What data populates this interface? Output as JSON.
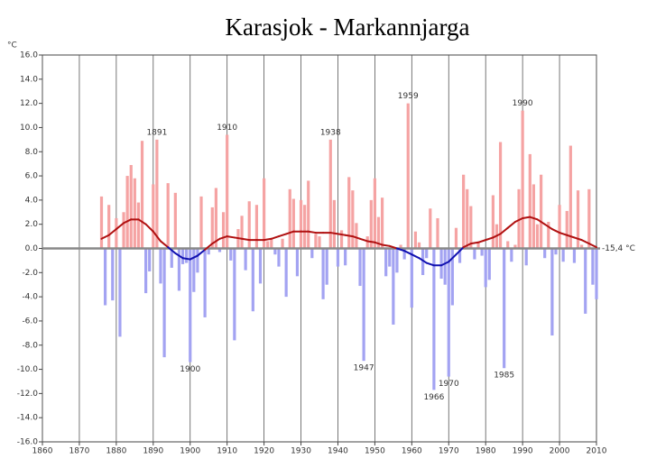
{
  "chart_data": {
    "type": "bar",
    "title": "Karasjok - Markannjarga",
    "y_unit": "°C",
    "reference_label": "-15,4 °C",
    "x": [
      1876,
      1877,
      1878,
      1879,
      1880,
      1881,
      1882,
      1883,
      1884,
      1885,
      1886,
      1887,
      1888,
      1889,
      1890,
      1891,
      1892,
      1893,
      1894,
      1895,
      1896,
      1897,
      1898,
      1899,
      1900,
      1901,
      1902,
      1903,
      1904,
      1905,
      1906,
      1907,
      1908,
      1909,
      1910,
      1911,
      1912,
      1913,
      1914,
      1915,
      1916,
      1917,
      1918,
      1919,
      1920,
      1921,
      1922,
      1923,
      1924,
      1925,
      1926,
      1927,
      1928,
      1929,
      1930,
      1931,
      1932,
      1933,
      1934,
      1935,
      1936,
      1937,
      1938,
      1939,
      1940,
      1941,
      1942,
      1943,
      1944,
      1945,
      1946,
      1947,
      1948,
      1949,
      1950,
      1951,
      1952,
      1953,
      1954,
      1955,
      1956,
      1957,
      1958,
      1959,
      1960,
      1961,
      1962,
      1963,
      1964,
      1965,
      1966,
      1967,
      1968,
      1969,
      1970,
      1971,
      1972,
      1973,
      1974,
      1975,
      1976,
      1977,
      1978,
      1979,
      1980,
      1981,
      1982,
      1983,
      1984,
      1985,
      1986,
      1987,
      1988,
      1989,
      1990,
      1991,
      1992,
      1993,
      1994,
      1995,
      1996,
      1997,
      1998,
      1999,
      2000,
      2001,
      2002,
      2003,
      2004,
      2005,
      2006,
      2007,
      2008,
      2009,
      2010
    ],
    "values": [
      4.3,
      -4.7,
      3.6,
      -4.3,
      2.5,
      -7.3,
      3.0,
      6.0,
      6.9,
      5.8,
      3.8,
      8.9,
      -3.7,
      -1.9,
      5.3,
      9.0,
      -2.9,
      -9.0,
      5.4,
      -1.6,
      4.6,
      -3.5,
      -1.3,
      -1.2,
      -9.4,
      -3.6,
      -2.0,
      4.3,
      -5.7,
      -0.5,
      3.4,
      5.0,
      -0.3,
      3.0,
      9.4,
      -1.0,
      -7.6,
      1.6,
      2.7,
      -1.8,
      3.9,
      -5.2,
      3.6,
      -2.9,
      5.8,
      0.6,
      0.8,
      -0.5,
      -1.5,
      0.8,
      -4.0,
      4.9,
      4.1,
      -2.3,
      4.0,
      3.6,
      5.6,
      -0.8,
      1.2,
      1.0,
      -4.2,
      -3.0,
      9.0,
      4.0,
      -1.5,
      1.5,
      -1.4,
      5.9,
      4.8,
      2.1,
      -3.1,
      -9.3,
      1.0,
      4.0,
      5.8,
      2.6,
      4.2,
      -2.3,
      -1.5,
      -6.3,
      -2.0,
      0.3,
      -0.9,
      12.0,
      -4.9,
      1.4,
      0.5,
      -2.2,
      -0.8,
      3.3,
      -11.7,
      2.5,
      -2.5,
      -3.0,
      -10.6,
      -4.7,
      1.7,
      -1.2,
      6.1,
      4.9,
      3.5,
      -0.9,
      0.5,
      -0.6,
      -3.2,
      -2.6,
      4.4,
      2.0,
      8.8,
      -9.9,
      0.6,
      -1.1,
      0.3,
      4.9,
      11.4,
      -1.4,
      7.8,
      5.3,
      2.0,
      6.1,
      -0.8,
      2.2,
      -7.2,
      -0.5,
      3.6,
      -1.1,
      3.1,
      8.5,
      -1.2,
      4.8,
      0.3,
      -5.4,
      4.9,
      -3.0,
      -4.2
    ],
    "positive_color": "#f5a3a3",
    "negative_color": "#a3a3f2",
    "smooth": {
      "x": [
        1876,
        1878,
        1880,
        1882,
        1884,
        1886,
        1888,
        1890,
        1892,
        1894,
        1896,
        1898,
        1900,
        1902,
        1904,
        1906,
        1908,
        1910,
        1912,
        1914,
        1916,
        1918,
        1920,
        1922,
        1924,
        1926,
        1928,
        1930,
        1932,
        1934,
        1936,
        1938,
        1940,
        1942,
        1944,
        1946,
        1948,
        1950,
        1952,
        1954,
        1956,
        1958,
        1960,
        1962,
        1964,
        1966,
        1968,
        1970,
        1972,
        1974,
        1976,
        1978,
        1980,
        1982,
        1984,
        1986,
        1988,
        1990,
        1992,
        1994,
        1996,
        1998,
        2000,
        2002,
        2004,
        2006,
        2008,
        2010
      ],
      "values": [
        0.8,
        1.1,
        1.6,
        2.1,
        2.4,
        2.4,
        2.0,
        1.4,
        0.6,
        0.1,
        -0.4,
        -0.8,
        -0.9,
        -0.6,
        -0.1,
        0.4,
        0.8,
        1.0,
        0.9,
        0.8,
        0.7,
        0.7,
        0.7,
        0.8,
        1.0,
        1.2,
        1.4,
        1.4,
        1.4,
        1.3,
        1.3,
        1.3,
        1.2,
        1.1,
        1.0,
        0.8,
        0.6,
        0.5,
        0.3,
        0.2,
        0.0,
        -0.2,
        -0.5,
        -0.8,
        -1.2,
        -1.4,
        -1.4,
        -1.1,
        -0.5,
        0.1,
        0.4,
        0.5,
        0.7,
        0.9,
        1.2,
        1.7,
        2.2,
        2.5,
        2.6,
        2.4,
        2.0,
        1.6,
        1.3,
        1.1,
        0.9,
        0.7,
        0.4,
        0.1
      ],
      "positive_color": "#b01010",
      "negative_color": "#1010b0"
    },
    "annotations": [
      {
        "x": 1891,
        "text": "1891"
      },
      {
        "x": 1910,
        "text": "1910"
      },
      {
        "x": 1938,
        "text": "1938"
      },
      {
        "x": 1959,
        "text": "1959"
      },
      {
        "x": 1990,
        "text": "1990"
      },
      {
        "x": 1900,
        "text": "1900"
      },
      {
        "x": 1947,
        "text": "1947"
      },
      {
        "x": 1966,
        "text": "1966"
      },
      {
        "x": 1970,
        "text": "1970"
      },
      {
        "x": 1985,
        "text": "1985"
      }
    ],
    "xlim": [
      1860,
      2010
    ],
    "xticks": [
      1860,
      1870,
      1880,
      1890,
      1900,
      1910,
      1920,
      1930,
      1940,
      1950,
      1960,
      1970,
      1980,
      1990,
      2000,
      2010
    ],
    "ylim": [
      -16,
      16
    ],
    "yticks": [
      {
        "value": 16,
        "label": "16.0"
      },
      {
        "value": 14,
        "label": "14.0"
      },
      {
        "value": 12,
        "label": "12.0"
      },
      {
        "value": 10,
        "label": "10.0"
      },
      {
        "value": 8,
        "label": "8.0"
      },
      {
        "value": 6,
        "label": "6.0"
      },
      {
        "value": 4,
        "label": "4.0"
      },
      {
        "value": 2,
        "label": "2.0"
      },
      {
        "value": 0,
        "label": "0.0"
      },
      {
        "value": -2,
        "label": "-2.0"
      },
      {
        "value": -4,
        "label": "-4.0"
      },
      {
        "value": -6,
        "label": "-6.0"
      },
      {
        "value": -8,
        "label": "-8.0"
      },
      {
        "value": -10,
        "label": "-10.0"
      },
      {
        "value": -12,
        "label": "-12.0"
      },
      {
        "value": -14,
        "label": "-14.0"
      },
      {
        "value": -16,
        "label": "-16.0"
      }
    ],
    "grid": true
  }
}
